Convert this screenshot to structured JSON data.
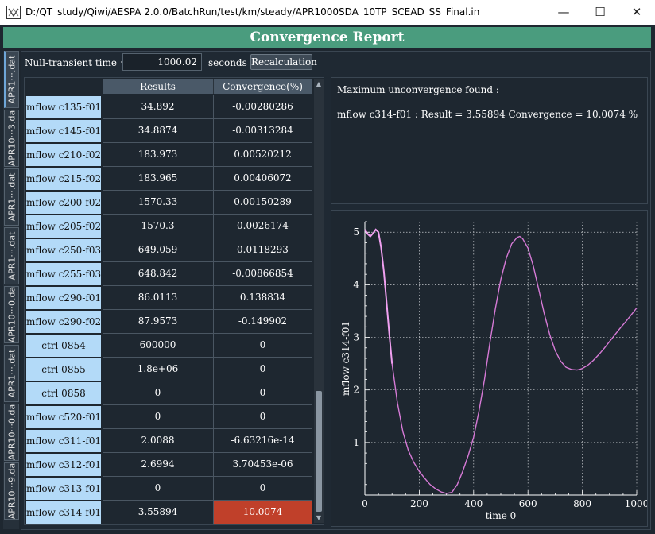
{
  "window": {
    "title": "D:/QT_study/Qiwi/AESPA 2.0.0/BatchRun/test/km/steady/APR1000SDA_10TP_SCEAD_SS_Final.in",
    "minimize": "—",
    "maximize": "☐",
    "close": "✕"
  },
  "banner": "Convergence Report",
  "side_tabs": [
    "APR1···.dat",
    "APR10···3.da",
    "APR1···.dat",
    "APR1···.dat",
    "APR10···0.da",
    "APR1···.dat",
    "APR10···0.da",
    "APR10···9.da"
  ],
  "controls": {
    "null_transient_label": "Null-transient time =",
    "null_transient_value": "1000.02",
    "units": "seconds",
    "recalc_label": "Recalculation"
  },
  "table": {
    "headers": [
      "Results",
      "Convergence(%)"
    ],
    "rows": [
      {
        "name": "mflow c135-f01",
        "result": "34.892",
        "conv": "-0.00280286"
      },
      {
        "name": "mflow c145-f01",
        "result": "34.8874",
        "conv": "-0.00313284"
      },
      {
        "name": "mflow c210-f02",
        "result": "183.973",
        "conv": "0.00520212"
      },
      {
        "name": "mflow c215-f02",
        "result": "183.965",
        "conv": "0.00406072"
      },
      {
        "name": "mflow c200-f02",
        "result": "1570.33",
        "conv": "0.00150289"
      },
      {
        "name": "mflow c205-f02",
        "result": "1570.3",
        "conv": "0.0026174"
      },
      {
        "name": "mflow c250-f03",
        "result": "649.059",
        "conv": "0.0118293"
      },
      {
        "name": "mflow c255-f03",
        "result": "648.842",
        "conv": "-0.00866854"
      },
      {
        "name": "mflow c290-f01",
        "result": "86.0113",
        "conv": "0.138834"
      },
      {
        "name": "mflow c290-f02",
        "result": "87.9573",
        "conv": "-0.149902"
      },
      {
        "name": "ctrl 0854",
        "result": "600000",
        "conv": "0"
      },
      {
        "name": "ctrl 0855",
        "result": "1.8e+06",
        "conv": "0"
      },
      {
        "name": "ctrl 0858",
        "result": "0",
        "conv": "0"
      },
      {
        "name": "mflow c520-f01",
        "result": "0",
        "conv": "0"
      },
      {
        "name": "mflow c311-f01",
        "result": "2.0088",
        "conv": "-6.63216e-14"
      },
      {
        "name": "mflow c312-f01",
        "result": "2.6994",
        "conv": "3.70453e-06"
      },
      {
        "name": "mflow c313-f01",
        "result": "0",
        "conv": "0"
      },
      {
        "name": "mflow c314-f01",
        "result": "3.55894",
        "conv": "10.0074",
        "highlight": true
      }
    ]
  },
  "info": {
    "line1": "Maximum unconvergence found :",
    "line2": "mflow c314-f01 : Result = 3.55894 Convergence = 10.0074 %"
  },
  "chart_data": {
    "type": "line",
    "xlabel": "time 0",
    "ylabel": "mflow c314-f01",
    "xlim": [
      0,
      1000
    ],
    "ylim": [
      0,
      5.2
    ],
    "xticks": [
      0,
      200,
      400,
      600,
      800,
      1000
    ],
    "yticks": [
      1,
      2,
      3,
      4,
      5
    ],
    "grid": true,
    "line_color": "#d67ad6",
    "series": [
      {
        "x": [
          0,
          10,
          20,
          30,
          40,
          50,
          60,
          70,
          80,
          90,
          100,
          120,
          140,
          160,
          180,
          200,
          220,
          240,
          260,
          280,
          300,
          320,
          340,
          360,
          380,
          400,
          420,
          440,
          460,
          480,
          500,
          520,
          540,
          560,
          570,
          580,
          600,
          620,
          640,
          660,
          680,
          700,
          720,
          740,
          760,
          780,
          790,
          800,
          820,
          840,
          860,
          880,
          900,
          920,
          940,
          960,
          980,
          1000
        ],
        "y": [
          5.05,
          4.97,
          4.92,
          4.98,
          5.05,
          5.0,
          4.7,
          4.25,
          3.65,
          3.05,
          2.5,
          1.75,
          1.2,
          0.85,
          0.62,
          0.45,
          0.32,
          0.2,
          0.12,
          0.06,
          0.03,
          0.05,
          0.2,
          0.45,
          0.75,
          1.1,
          1.6,
          2.2,
          2.9,
          3.55,
          4.1,
          4.5,
          4.78,
          4.9,
          4.92,
          4.88,
          4.7,
          4.35,
          3.9,
          3.45,
          3.05,
          2.75,
          2.55,
          2.43,
          2.39,
          2.38,
          2.39,
          2.41,
          2.47,
          2.56,
          2.67,
          2.79,
          2.92,
          3.05,
          3.18,
          3.3,
          3.43,
          3.56
        ]
      }
    ]
  }
}
